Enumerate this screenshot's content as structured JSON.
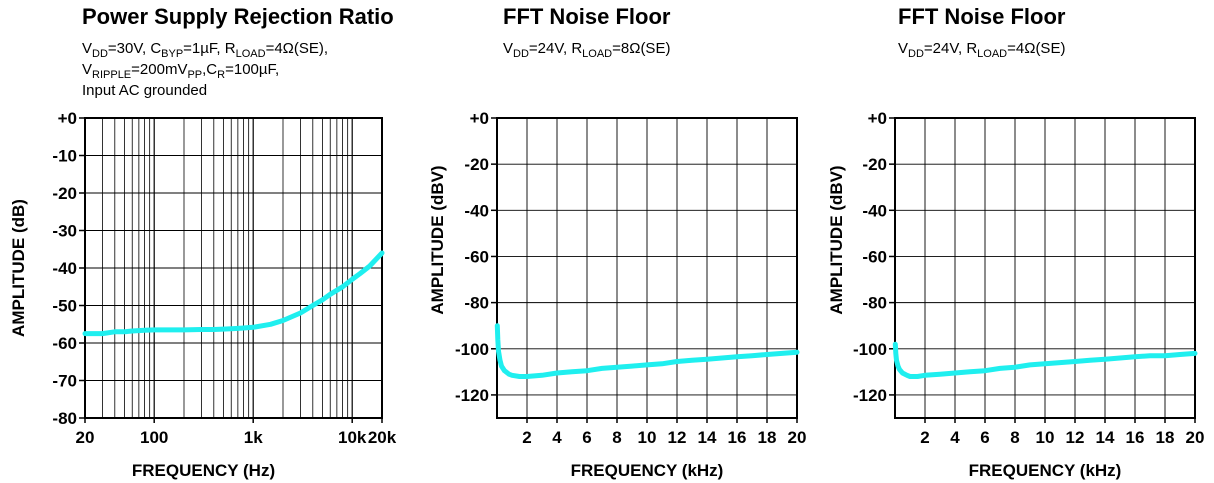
{
  "colors": {
    "trace": "#1FEFEF",
    "axis": "#000000",
    "grid": "#000000"
  },
  "chart_data": [
    {
      "type": "line",
      "title": "Power Supply Rejection Ratio",
      "subtitle_lines": [
        [
          [
            "V",
            ""
          ],
          [
            "DD",
            "sub"
          ],
          [
            "=30V, C",
            ""
          ],
          [
            "BYP",
            "sub"
          ],
          [
            "=1µF, R",
            ""
          ],
          [
            "LOAD",
            "sub"
          ],
          [
            "=4Ω(SE),",
            ""
          ]
        ],
        [
          [
            "V",
            ""
          ],
          [
            "RIPPLE",
            "sub"
          ],
          [
            "=200mV",
            ""
          ],
          [
            "PP",
            "sub"
          ],
          [
            ",C",
            ""
          ],
          [
            "R",
            "sub"
          ],
          [
            "=100µF,",
            ""
          ]
        ],
        [
          [
            "Input AC grounded",
            ""
          ]
        ]
      ],
      "xlabel": "FREQUENCY (Hz)",
      "ylabel": "AMPLITUDE (dB)",
      "xscale": "log",
      "xlim": [
        20,
        20000
      ],
      "ylim": [
        -80,
        0
      ],
      "xticks": [
        [
          20,
          "20"
        ],
        [
          100,
          "100"
        ],
        [
          1000,
          "1k"
        ],
        [
          10000,
          "10k"
        ],
        [
          20000,
          "20k"
        ]
      ],
      "yticks": [
        [
          0,
          "+0"
        ],
        [
          -10,
          "-10"
        ],
        [
          -20,
          "-20"
        ],
        [
          -30,
          "-30"
        ],
        [
          -40,
          "-40"
        ],
        [
          -50,
          "-50"
        ],
        [
          -60,
          "-60"
        ],
        [
          -70,
          "-70"
        ],
        [
          -80,
          "-80"
        ]
      ],
      "grid": true,
      "series": [
        {
          "x": [
            20,
            30,
            40,
            50,
            60,
            80,
            100,
            150,
            200,
            300,
            400,
            500,
            600,
            700,
            800,
            1000,
            1500,
            2000,
            3000,
            4000,
            5000,
            6000,
            8000,
            10000,
            12000,
            15000,
            20000
          ],
          "y": [
            -57.5,
            -57.5,
            -57,
            -57,
            -56.8,
            -56.6,
            -56.5,
            -56.5,
            -56.5,
            -56.4,
            -56.4,
            -56.3,
            -56.2,
            -56.1,
            -56,
            -55.8,
            -55,
            -54,
            -52,
            -50,
            -48.5,
            -47,
            -45,
            -43,
            -41.5,
            -39.5,
            -36
          ]
        }
      ]
    },
    {
      "type": "line",
      "title": "FFT Noise Floor",
      "subtitle_lines": [
        [
          [
            "V",
            ""
          ],
          [
            "DD",
            "sub"
          ],
          [
            "=24V, R",
            ""
          ],
          [
            "LOAD",
            "sub"
          ],
          [
            "=8Ω(SE)",
            ""
          ]
        ]
      ],
      "xlabel": "FREQUENCY (kHz)",
      "ylabel": "AMPLITUDE (dBV)",
      "xlim": [
        0,
        20
      ],
      "ylim": [
        -130,
        0
      ],
      "xticks": [
        [
          2,
          "2"
        ],
        [
          4,
          "4"
        ],
        [
          6,
          "6"
        ],
        [
          8,
          "8"
        ],
        [
          10,
          "10"
        ],
        [
          12,
          "12"
        ],
        [
          14,
          "14"
        ],
        [
          16,
          "16"
        ],
        [
          18,
          "18"
        ],
        [
          20,
          "20"
        ]
      ],
      "yticks": [
        [
          0,
          "+0"
        ],
        [
          -20,
          "-20"
        ],
        [
          -40,
          "-40"
        ],
        [
          -60,
          "-60"
        ],
        [
          -80,
          "-80"
        ],
        [
          -100,
          "-100"
        ],
        [
          -120,
          "-120"
        ]
      ],
      "grid": true,
      "series": [
        {
          "x": [
            0.02,
            0.05,
            0.1,
            0.2,
            0.3,
            0.5,
            0.8,
            1,
            1.5,
            2,
            3,
            4,
            5,
            6,
            7,
            8,
            9,
            10,
            11,
            12,
            13,
            14,
            15,
            16,
            17,
            18,
            19,
            20
          ],
          "y": [
            -90,
            -96,
            -101,
            -105,
            -107.5,
            -109.5,
            -111,
            -111.5,
            -112,
            -112,
            -111.5,
            -110.5,
            -110,
            -109.5,
            -108.5,
            -108,
            -107.5,
            -107,
            -106.5,
            -105.5,
            -105,
            -104.5,
            -104,
            -103.5,
            -103,
            -102.5,
            -102,
            -101.5
          ]
        }
      ]
    },
    {
      "type": "line",
      "title": "FFT Noise Floor",
      "subtitle_lines": [
        [
          [
            "V",
            ""
          ],
          [
            "DD",
            "sub"
          ],
          [
            "=24V, R",
            ""
          ],
          [
            "LOAD",
            "sub"
          ],
          [
            "=4Ω(SE)",
            ""
          ]
        ]
      ],
      "xlabel": "FREQUENCY (kHz)",
      "ylabel": "AMPLITUDE (dBV)",
      "xlim": [
        0,
        20
      ],
      "ylim": [
        -130,
        0
      ],
      "xticks": [
        [
          2,
          "2"
        ],
        [
          4,
          "4"
        ],
        [
          6,
          "6"
        ],
        [
          8,
          "8"
        ],
        [
          10,
          "10"
        ],
        [
          12,
          "12"
        ],
        [
          14,
          "14"
        ],
        [
          16,
          "16"
        ],
        [
          18,
          "18"
        ],
        [
          20,
          "20"
        ]
      ],
      "yticks": [
        [
          0,
          "+0"
        ],
        [
          -20,
          "-20"
        ],
        [
          -40,
          "-40"
        ],
        [
          -60,
          "-60"
        ],
        [
          -80,
          "-80"
        ],
        [
          -100,
          "-100"
        ],
        [
          -120,
          "-120"
        ]
      ],
      "grid": true,
      "series": [
        {
          "x": [
            0.02,
            0.05,
            0.1,
            0.2,
            0.3,
            0.5,
            0.8,
            1,
            1.5,
            2,
            3,
            4,
            5,
            6,
            7,
            8,
            9,
            10,
            11,
            12,
            13,
            14,
            15,
            16,
            17,
            18,
            19,
            20
          ],
          "y": [
            -98,
            -102,
            -105,
            -107.5,
            -109,
            -110.5,
            -111.5,
            -112,
            -112,
            -111.5,
            -111,
            -110.5,
            -110,
            -109.5,
            -108.5,
            -108,
            -107,
            -106.5,
            -106,
            -105.5,
            -105,
            -104.5,
            -104,
            -103.5,
            -103,
            -103,
            -102.5,
            -102
          ]
        }
      ]
    }
  ]
}
